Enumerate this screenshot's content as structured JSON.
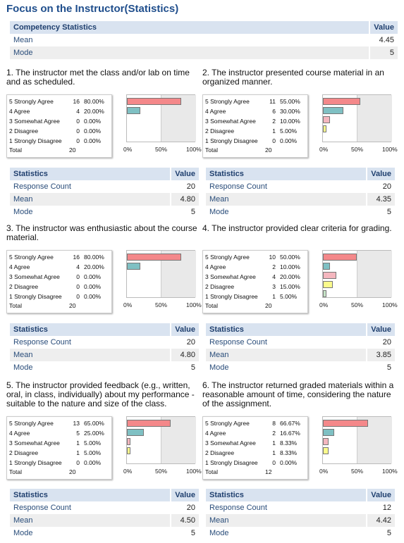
{
  "page_title": "Focus on the Instructor(Statistics)",
  "summary": {
    "col_label": "Competency Statistics",
    "col_value": "Value",
    "rows": [
      {
        "label": "Mean",
        "value": "4.45"
      },
      {
        "label": "Mode",
        "value": "5"
      }
    ]
  },
  "colors": {
    "5": "#f4888a",
    "4": "#7fc0c3",
    "3": "#f4b6be",
    "2": "#fafa8c",
    "1": "#c6e5c7"
  },
  "scale_labels": [
    "5 Strongly Agree",
    "4 Agree",
    "3 Somewhat Agree",
    "2 Disagree",
    "1 Strongly Disagree"
  ],
  "total_label": "Total",
  "axis_ticks": [
    "0%",
    "50%",
    "100%"
  ],
  "stats_header": {
    "label": "Statistics",
    "value": "Value"
  },
  "stats_labels": [
    "Response Count",
    "Mean",
    "Mode"
  ],
  "questions": [
    {
      "title": "1. The instructor met the class and/or lab on time and as scheduled.",
      "counts": [
        "16",
        "4",
        "0",
        "0",
        "0"
      ],
      "percents": [
        "80.00%",
        "20.00%",
        "0.00%",
        "0.00%",
        "0.00%"
      ],
      "fractions": [
        0.8,
        0.2,
        0,
        0,
        0
      ],
      "total": "20",
      "stats": [
        "20",
        "4.80",
        "5"
      ]
    },
    {
      "title": "2. The instructor presented course material in an organized manner.",
      "counts": [
        "11",
        "6",
        "2",
        "1",
        "0"
      ],
      "percents": [
        "55.00%",
        "30.00%",
        "10.00%",
        "5.00%",
        "0.00%"
      ],
      "fractions": [
        0.55,
        0.3,
        0.1,
        0.05,
        0
      ],
      "total": "20",
      "stats": [
        "20",
        "4.35",
        "5"
      ]
    },
    {
      "title": "3. The instructor was enthusiastic about the course material.",
      "counts": [
        "16",
        "4",
        "0",
        "0",
        "0"
      ],
      "percents": [
        "80.00%",
        "20.00%",
        "0.00%",
        "0.00%",
        "0.00%"
      ],
      "fractions": [
        0.8,
        0.2,
        0,
        0,
        0
      ],
      "total": "20",
      "stats": [
        "20",
        "4.80",
        "5"
      ]
    },
    {
      "title": "4. The instructor provided clear criteria for grading.",
      "counts": [
        "10",
        "2",
        "4",
        "3",
        "1"
      ],
      "percents": [
        "50.00%",
        "10.00%",
        "20.00%",
        "15.00%",
        "5.00%"
      ],
      "fractions": [
        0.5,
        0.1,
        0.2,
        0.15,
        0.05
      ],
      "total": "20",
      "stats": [
        "20",
        "3.85",
        "5"
      ]
    },
    {
      "title": "5. The instructor provided feedback (e.g., written, oral, in class, individually) about my performance - suitable to the nature and size of the class.",
      "counts": [
        "13",
        "5",
        "1",
        "1",
        "0"
      ],
      "percents": [
        "65.00%",
        "25.00%",
        "5.00%",
        "5.00%",
        "0.00%"
      ],
      "fractions": [
        0.65,
        0.25,
        0.05,
        0.05,
        0
      ],
      "total": "20",
      "stats": [
        "20",
        "4.50",
        "5"
      ]
    },
    {
      "title": "6. The instructor returned graded materials within a reasonable amount of time, considering the nature of the assignment.",
      "counts": [
        "8",
        "2",
        "1",
        "1",
        "0"
      ],
      "percents": [
        "66.67%",
        "16.67%",
        "8.33%",
        "8.33%",
        "0.00%"
      ],
      "fractions": [
        0.6667,
        0.1667,
        0.0833,
        0.0833,
        0
      ],
      "total": "12",
      "stats": [
        "12",
        "4.42",
        "5"
      ]
    }
  ]
}
